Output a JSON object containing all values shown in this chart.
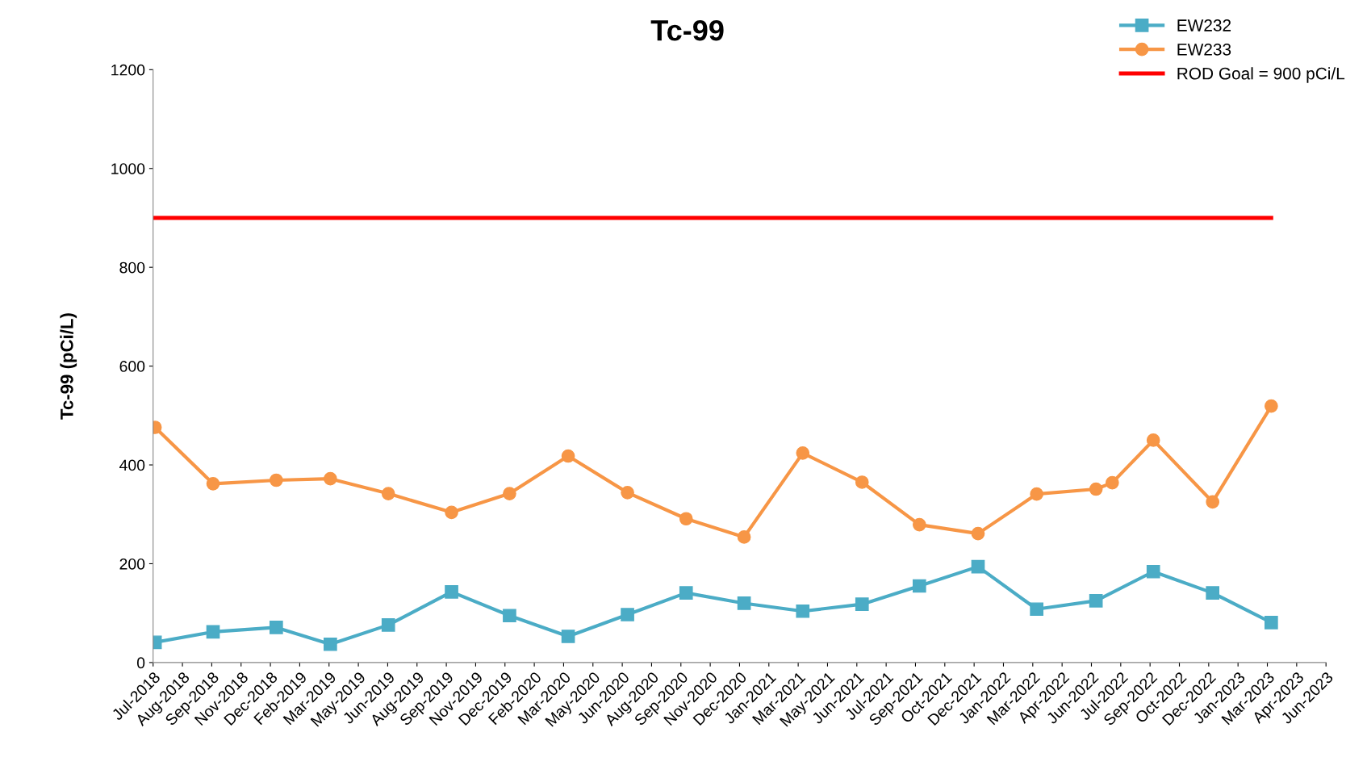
{
  "chart_data": {
    "type": "line",
    "title": "Tc-99",
    "ylabel": "Tc-99 (pCi/L)",
    "xlim": [
      "2018-07-01",
      "2023-06-05"
    ],
    "xticks": [
      {
        "value": "2018-07-01",
        "label": "Jul-2018"
      },
      {
        "value": "2018-08-15",
        "label": "Aug-2018"
      },
      {
        "value": "2018-09-29",
        "label": "Sep-2018"
      },
      {
        "value": "2018-11-13",
        "label": "Nov-2018"
      },
      {
        "value": "2018-12-28",
        "label": "Dec-2018"
      },
      {
        "value": "2019-02-11",
        "label": "Feb-2019"
      },
      {
        "value": "2019-03-28",
        "label": "Mar-2019"
      },
      {
        "value": "2019-05-12",
        "label": "May-2019"
      },
      {
        "value": "2019-06-26",
        "label": "Jun-2019"
      },
      {
        "value": "2019-08-10",
        "label": "Aug-2019"
      },
      {
        "value": "2019-09-24",
        "label": "Sep-2019"
      },
      {
        "value": "2019-11-08",
        "label": "Nov-2019"
      },
      {
        "value": "2019-12-23",
        "label": "Dec-2019"
      },
      {
        "value": "2020-02-06",
        "label": "Feb-2020"
      },
      {
        "value": "2020-03-22",
        "label": "Mar-2020"
      },
      {
        "value": "2020-05-06",
        "label": "May-2020"
      },
      {
        "value": "2020-06-20",
        "label": "Jun-2020"
      },
      {
        "value": "2020-08-04",
        "label": "Aug-2020"
      },
      {
        "value": "2020-09-18",
        "label": "Sep-2020"
      },
      {
        "value": "2020-11-02",
        "label": "Nov-2020"
      },
      {
        "value": "2020-12-17",
        "label": "Dec-2020"
      },
      {
        "value": "2021-01-31",
        "label": "Jan-2021"
      },
      {
        "value": "2021-03-17",
        "label": "Mar-2021"
      },
      {
        "value": "2021-05-01",
        "label": "May-2021"
      },
      {
        "value": "2021-06-15",
        "label": "Jun-2021"
      },
      {
        "value": "2021-07-30",
        "label": "Jul-2021"
      },
      {
        "value": "2021-09-13",
        "label": "Sep-2021"
      },
      {
        "value": "2021-10-28",
        "label": "Oct-2021"
      },
      {
        "value": "2021-12-12",
        "label": "Dec-2021"
      },
      {
        "value": "2022-01-26",
        "label": "Jan-2022"
      },
      {
        "value": "2022-03-12",
        "label": "Mar-2022"
      },
      {
        "value": "2022-04-26",
        "label": "Apr-2022"
      },
      {
        "value": "2022-06-10",
        "label": "Jun-2022"
      },
      {
        "value": "2022-07-25",
        "label": "Jul-2022"
      },
      {
        "value": "2022-09-08",
        "label": "Sep-2022"
      },
      {
        "value": "2022-10-23",
        "label": "Oct-2022"
      },
      {
        "value": "2022-12-07",
        "label": "Dec-2022"
      },
      {
        "value": "2023-01-21",
        "label": "Jan-2023"
      },
      {
        "value": "2023-03-07",
        "label": "Mar-2023"
      },
      {
        "value": "2023-04-21",
        "label": "Apr-2023"
      },
      {
        "value": "2023-06-05",
        "label": "Jun-2023"
      }
    ],
    "ylim": [
      0,
      1200
    ],
    "yticks": [
      0,
      200,
      400,
      600,
      800,
      1000,
      1200
    ],
    "grid": false,
    "legend": "top right",
    "series": [
      {
        "name": "EW232",
        "color": "#4bacc6",
        "marker": "square",
        "x": [
          "2018-07-04",
          "2018-10-01",
          "2019-01-06",
          "2019-03-30",
          "2019-06-27",
          "2019-10-02",
          "2019-12-30",
          "2020-03-29",
          "2020-06-28",
          "2020-09-26",
          "2020-12-24",
          "2021-03-24",
          "2021-06-23",
          "2021-09-19",
          "2021-12-18",
          "2022-03-18",
          "2022-06-17",
          "2022-09-13",
          "2022-12-13",
          "2023-03-13"
        ],
        "values": [
          41,
          62,
          71,
          37,
          76,
          143,
          95,
          53,
          97,
          141,
          120,
          104,
          118,
          155,
          194,
          108,
          125,
          184,
          141,
          81
        ]
      },
      {
        "name": "EW233",
        "color": "#f79646",
        "marker": "circle",
        "x": [
          "2018-07-04",
          "2018-10-01",
          "2019-01-06",
          "2019-03-30",
          "2019-06-27",
          "2019-10-02",
          "2019-12-30",
          "2020-03-29",
          "2020-06-28",
          "2020-09-26",
          "2020-12-24",
          "2021-03-24",
          "2021-06-23",
          "2021-09-19",
          "2021-12-18",
          "2022-03-18",
          "2022-06-17",
          "2022-07-12",
          "2022-09-13",
          "2022-12-13",
          "2023-03-13"
        ],
        "values": [
          476,
          362,
          369,
          372,
          342,
          304,
          342,
          418,
          344,
          291,
          254,
          424,
          365,
          279,
          261,
          341,
          351,
          364,
          450,
          325,
          519
        ]
      },
      {
        "name": "ROD Goal = 900 pCi/L",
        "color": "#ff0000",
        "marker": "none",
        "x": [
          "2018-07-04",
          "2023-03-13"
        ],
        "values": [
          900,
          900
        ]
      }
    ]
  }
}
